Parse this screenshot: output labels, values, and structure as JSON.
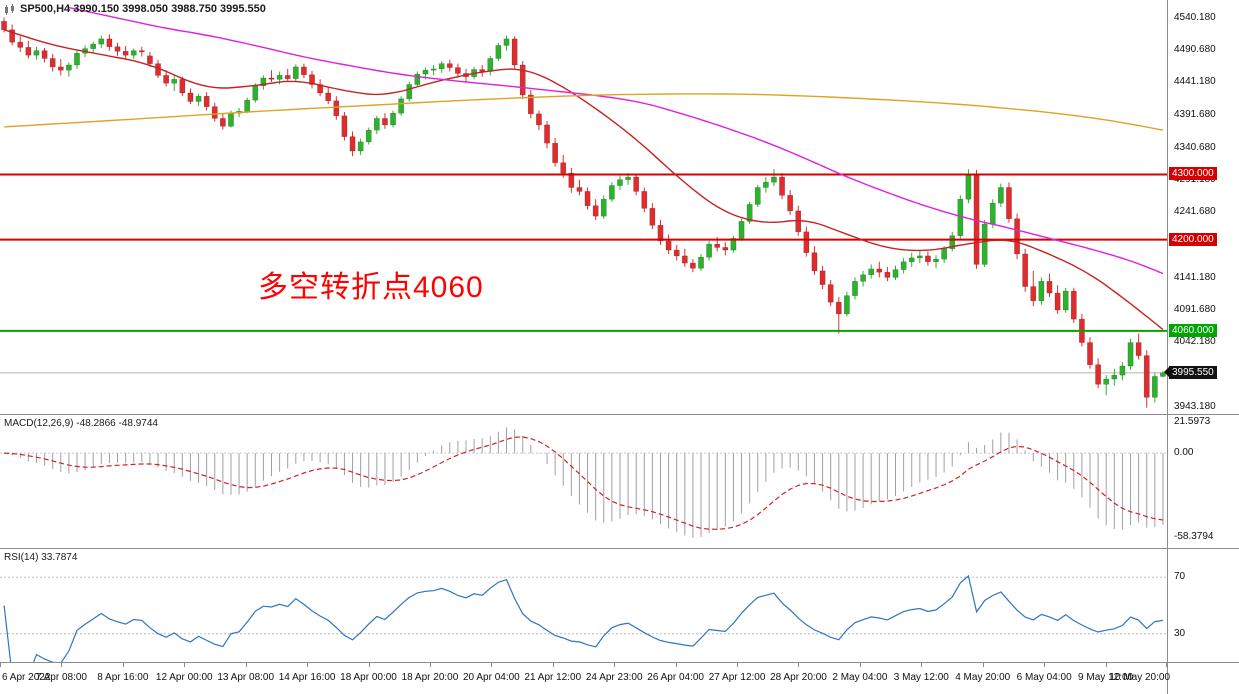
{
  "title": {
    "text": "SP500,H4  3990.150 3998.050 3988.750 3995.550"
  },
  "annotation": {
    "text": "多空转折点4060",
    "color": "#ff0000"
  },
  "colors": {
    "up": "#2bb32b",
    "down": "#e02c2c",
    "background": "#ffffff",
    "separator": "#8c8c8c",
    "axis_text": "#111111",
    "current_price_line": "#999999",
    "current_price_box": "#111111"
  },
  "chart_data": {
    "type": "candlestick",
    "symbol": "SP500",
    "timeframe": "H4",
    "ohlc_display": {
      "open": "3990.150",
      "high": "3998.050",
      "low": "3988.750",
      "close": "3995.550"
    },
    "price_range": [
      3932.4,
      4567.7
    ],
    "price_ticks": [
      {
        "v": 4540.18,
        "label": "4540.180"
      },
      {
        "v": 4490.68,
        "label": "4490.680"
      },
      {
        "v": 4441.18,
        "label": "4441.180"
      },
      {
        "v": 4391.68,
        "label": "4391.680"
      },
      {
        "v": 4340.68,
        "label": "4340.680"
      },
      {
        "v": 4291.18,
        "label": "4291.180"
      },
      {
        "v": 4241.68,
        "label": "4241.680"
      },
      {
        "v": 4141.18,
        "label": "4141.180"
      },
      {
        "v": 4091.68,
        "label": "4091.680"
      },
      {
        "v": 4042.18,
        "label": "4042.180"
      },
      {
        "v": 3943.18,
        "label": "3943.180"
      }
    ],
    "hlines": [
      {
        "price": 4300,
        "label": "4300.000",
        "color": "#d40000",
        "width": 2
      },
      {
        "price": 4200,
        "label": "4200.000",
        "color": "#d40000",
        "width": 2
      },
      {
        "price": 4060,
        "label": "4060.000",
        "color": "#00a503",
        "width": 2
      }
    ],
    "current_price": {
      "price": 3995.55,
      "label": "3995.550"
    },
    "time_labels": [
      "6 Apr 2022",
      "7 Apr 08:00",
      "8 Apr 16:00",
      "12 Apr 00:00",
      "13 Apr 08:00",
      "14 Apr 16:00",
      "18 Apr 00:00",
      "18 Apr 20:00",
      "20 Apr 04:00",
      "21 Apr 12:00",
      "24 Apr 23:00",
      "26 Apr 04:00",
      "27 Apr 12:00",
      "28 Apr 20:00",
      "2 May 04:00",
      "3 May 12:00",
      "4 May 20:00",
      "6 May 04:00",
      "9 May 12:00",
      "10 May 20:00"
    ],
    "candles": [
      [
        4535,
        4541,
        4518,
        4522
      ],
      [
        4522,
        4530,
        4498,
        4503
      ],
      [
        4503,
        4512,
        4488,
        4495
      ],
      [
        4495,
        4505,
        4478,
        4483
      ],
      [
        4483,
        4496,
        4476,
        4490
      ],
      [
        4490,
        4494,
        4472,
        4478
      ],
      [
        4478,
        4485,
        4458,
        4465
      ],
      [
        4465,
        4477,
        4452,
        4460
      ],
      [
        4460,
        4472,
        4450,
        4468
      ],
      [
        4468,
        4490,
        4462,
        4486
      ],
      [
        4486,
        4498,
        4480,
        4493
      ],
      [
        4493,
        4504,
        4486,
        4500
      ],
      [
        4500,
        4513,
        4494,
        4508
      ],
      [
        4508,
        4515,
        4490,
        4496
      ],
      [
        4496,
        4502,
        4482,
        4489
      ],
      [
        4489,
        4497,
        4478,
        4483
      ],
      [
        4483,
        4493,
        4477,
        4490
      ],
      [
        4490,
        4496,
        4481,
        4488
      ],
      [
        4482,
        4488,
        4465,
        4470
      ],
      [
        4470,
        4476,
        4448,
        4452
      ],
      [
        4452,
        4460,
        4435,
        4440
      ],
      [
        4440,
        4452,
        4428,
        4446
      ],
      [
        4446,
        4450,
        4420,
        4425
      ],
      [
        4425,
        4432,
        4408,
        4412
      ],
      [
        4412,
        4424,
        4405,
        4420
      ],
      [
        4420,
        4426,
        4398,
        4404
      ],
      [
        4404,
        4410,
        4381,
        4386
      ],
      [
        4386,
        4394,
        4369,
        4374
      ],
      [
        4374,
        4398,
        4372,
        4394
      ],
      [
        4394,
        4402,
        4388,
        4397
      ],
      [
        4397,
        4418,
        4394,
        4414
      ],
      [
        4414,
        4440,
        4410,
        4436
      ],
      [
        4436,
        4452,
        4430,
        4448
      ],
      [
        4448,
        4460,
        4442,
        4446
      ],
      [
        4446,
        4458,
        4438,
        4452
      ],
      [
        4452,
        4462,
        4444,
        4447
      ],
      [
        4447,
        4469,
        4443,
        4465
      ],
      [
        4465,
        4470,
        4448,
        4453
      ],
      [
        4453,
        4459,
        4432,
        4438
      ],
      [
        4438,
        4446,
        4420,
        4425
      ],
      [
        4425,
        4434,
        4408,
        4413
      ],
      [
        4413,
        4420,
        4384,
        4390
      ],
      [
        4390,
        4396,
        4352,
        4358
      ],
      [
        4358,
        4366,
        4328,
        4336
      ],
      [
        4336,
        4355,
        4330,
        4350
      ],
      [
        4350,
        4372,
        4346,
        4368
      ],
      [
        4368,
        4390,
        4362,
        4386
      ],
      [
        4386,
        4394,
        4370,
        4376
      ],
      [
        4376,
        4398,
        4372,
        4394
      ],
      [
        4394,
        4420,
        4390,
        4416
      ],
      [
        4416,
        4442,
        4412,
        4438
      ],
      [
        4438,
        4458,
        4434,
        4454
      ],
      [
        4454,
        4464,
        4446,
        4460
      ],
      [
        4460,
        4468,
        4452,
        4462
      ],
      [
        4462,
        4474,
        4456,
        4470
      ],
      [
        4470,
        4476,
        4458,
        4464
      ],
      [
        4464,
        4470,
        4448,
        4455
      ],
      [
        4455,
        4462,
        4442,
        4450
      ],
      [
        4450,
        4465,
        4446,
        4461
      ],
      [
        4461,
        4468,
        4450,
        4458
      ],
      [
        4458,
        4482,
        4452,
        4478
      ],
      [
        4478,
        4502,
        4474,
        4498
      ],
      [
        4498,
        4513,
        4490,
        4508
      ],
      [
        4508,
        4512,
        4462,
        4468
      ],
      [
        4468,
        4474,
        4416,
        4422
      ],
      [
        4422,
        4430,
        4386,
        4393
      ],
      [
        4393,
        4398,
        4368,
        4376
      ],
      [
        4376,
        4382,
        4340,
        4348
      ],
      [
        4348,
        4356,
        4312,
        4318
      ],
      [
        4318,
        4330,
        4295,
        4302
      ],
      [
        4302,
        4310,
        4272,
        4280
      ],
      [
        4280,
        4292,
        4268,
        4274
      ],
      [
        4274,
        4280,
        4246,
        4252
      ],
      [
        4252,
        4262,
        4230,
        4236
      ],
      [
        4236,
        4268,
        4232,
        4262
      ],
      [
        4262,
        4288,
        4258,
        4283
      ],
      [
        4283,
        4298,
        4276,
        4292
      ],
      [
        4292,
        4302,
        4284,
        4296
      ],
      [
        4296,
        4300,
        4268,
        4274
      ],
      [
        4274,
        4280,
        4242,
        4248
      ],
      [
        4248,
        4256,
        4216,
        4222
      ],
      [
        4222,
        4230,
        4192,
        4198
      ],
      [
        4198,
        4208,
        4178,
        4184
      ],
      [
        4184,
        4192,
        4168,
        4175
      ],
      [
        4175,
        4186,
        4158,
        4164
      ],
      [
        4164,
        4170,
        4150,
        4156
      ],
      [
        4156,
        4178,
        4152,
        4173
      ],
      [
        4173,
        4198,
        4168,
        4193
      ],
      [
        4193,
        4204,
        4182,
        4188
      ],
      [
        4188,
        4196,
        4176,
        4184
      ],
      [
        4184,
        4206,
        4180,
        4202
      ],
      [
        4202,
        4232,
        4198,
        4228
      ],
      [
        4228,
        4258,
        4224,
        4254
      ],
      [
        4254,
        4284,
        4250,
        4280
      ],
      [
        4280,
        4296,
        4272,
        4288
      ],
      [
        4288,
        4308,
        4282,
        4296
      ],
      [
        4296,
        4302,
        4262,
        4268
      ],
      [
        4268,
        4276,
        4238,
        4244
      ],
      [
        4244,
        4252,
        4206,
        4212
      ],
      [
        4212,
        4220,
        4174,
        4180
      ],
      [
        4180,
        4190,
        4146,
        4152
      ],
      [
        4152,
        4160,
        4124,
        4131
      ],
      [
        4131,
        4138,
        4098,
        4104
      ],
      [
        4104,
        4112,
        4056,
        4086
      ],
      [
        4086,
        4120,
        4082,
        4114
      ],
      [
        4114,
        4142,
        4108,
        4136
      ],
      [
        4136,
        4152,
        4128,
        4146
      ],
      [
        4146,
        4162,
        4140,
        4155
      ],
      [
        4155,
        4166,
        4142,
        4150
      ],
      [
        4150,
        4158,
        4136,
        4142
      ],
      [
        4142,
        4160,
        4138,
        4154
      ],
      [
        4154,
        4172,
        4148,
        4166
      ],
      [
        4166,
        4180,
        4158,
        4172
      ],
      [
        4172,
        4184,
        4164,
        4175
      ],
      [
        4175,
        4182,
        4160,
        4166
      ],
      [
        4166,
        4176,
        4156,
        4170
      ],
      [
        4170,
        4190,
        4164,
        4186
      ],
      [
        4186,
        4212,
        4182,
        4206
      ],
      [
        4206,
        4268,
        4200,
        4262
      ],
      [
        4262,
        4308,
        4256,
        4300
      ],
      [
        4300,
        4307,
        4155,
        4162
      ],
      [
        4162,
        4230,
        4158,
        4224
      ],
      [
        4224,
        4262,
        4218,
        4256
      ],
      [
        4256,
        4286,
        4250,
        4280
      ],
      [
        4280,
        4288,
        4226,
        4232
      ],
      [
        4232,
        4240,
        4170,
        4178
      ],
      [
        4178,
        4186,
        4120,
        4128
      ],
      [
        4128,
        4152,
        4098,
        4106
      ],
      [
        4106,
        4142,
        4100,
        4136
      ],
      [
        4136,
        4148,
        4112,
        4118
      ],
      [
        4118,
        4130,
        4086,
        4092
      ],
      [
        4092,
        4126,
        4088,
        4121
      ],
      [
        4121,
        4126,
        4072,
        4078
      ],
      [
        4078,
        4086,
        4036,
        4042
      ],
      [
        4042,
        4050,
        4002,
        4008
      ],
      [
        4008,
        4018,
        3972,
        3978
      ],
      [
        3978,
        3992,
        3961,
        3986
      ],
      [
        3986,
        4002,
        3976,
        3992
      ],
      [
        3992,
        4012,
        3984,
        4006
      ],
      [
        4006,
        4048,
        4000,
        4042
      ],
      [
        4042,
        4056,
        4016,
        4022
      ],
      [
        4022,
        4030,
        3942,
        3958
      ],
      [
        3958,
        3996,
        3950,
        3990
      ],
      [
        3990.15,
        3998.05,
        3988.75,
        3995.55
      ]
    ],
    "moving_averages": [
      {
        "name": "ma-fast-red",
        "color": "#c62222",
        "points": [
          [
            0,
            4522
          ],
          [
            6,
            4498
          ],
          [
            12,
            4484
          ],
          [
            18,
            4470
          ],
          [
            25,
            4430
          ],
          [
            31,
            4436
          ],
          [
            36,
            4446
          ],
          [
            42,
            4428
          ],
          [
            47,
            4420
          ],
          [
            53,
            4442
          ],
          [
            59,
            4458
          ],
          [
            64,
            4464
          ],
          [
            69,
            4436
          ],
          [
            77,
            4366
          ],
          [
            84,
            4286
          ],
          [
            89,
            4240
          ],
          [
            94,
            4224
          ],
          [
            99,
            4232
          ],
          [
            104,
            4208
          ],
          [
            109,
            4186
          ],
          [
            114,
            4182
          ],
          [
            119,
            4194
          ],
          [
            124,
            4202
          ],
          [
            129,
            4178
          ],
          [
            134,
            4148
          ],
          [
            139,
            4102
          ],
          [
            143,
            4062
          ]
        ]
      },
      {
        "name": "ma-medium-magenta",
        "color": "#dd22dd",
        "points": [
          [
            8,
            4556
          ],
          [
            14,
            4540
          ],
          [
            20,
            4524
          ],
          [
            25,
            4514
          ],
          [
            31,
            4498
          ],
          [
            37,
            4480
          ],
          [
            43,
            4466
          ],
          [
            49,
            4453
          ],
          [
            56,
            4443
          ],
          [
            62,
            4436
          ],
          [
            68,
            4428
          ],
          [
            74,
            4420
          ],
          [
            79,
            4410
          ],
          [
            84,
            4392
          ],
          [
            89,
            4372
          ],
          [
            94,
            4350
          ],
          [
            99,
            4324
          ],
          [
            104,
            4296
          ],
          [
            109,
            4272
          ],
          [
            114,
            4250
          ],
          [
            119,
            4232
          ],
          [
            124,
            4218
          ],
          [
            129,
            4202
          ],
          [
            134,
            4186
          ],
          [
            139,
            4168
          ],
          [
            143,
            4148
          ]
        ]
      },
      {
        "name": "ma-slow-orange",
        "color": "#dfa321",
        "points": [
          [
            0,
            4373
          ],
          [
            15,
            4384
          ],
          [
            30,
            4396
          ],
          [
            45,
            4406
          ],
          [
            60,
            4416
          ],
          [
            75,
            4423
          ],
          [
            90,
            4424
          ],
          [
            100,
            4420
          ],
          [
            110,
            4414
          ],
          [
            120,
            4406
          ],
          [
            130,
            4394
          ],
          [
            137,
            4382
          ],
          [
            143,
            4368
          ]
        ]
      }
    ],
    "macd": {
      "label": "MACD(12,26,9) -48.2866 -48.9744",
      "fast": 12,
      "slow": 26,
      "signal": 9,
      "value": -48.2866,
      "signal_value": -48.9744,
      "ticks": [
        {
          "v": 21.5973,
          "label": "21.5973"
        },
        {
          "v": 0,
          "label": "0.00"
        },
        {
          "v": -58.3794,
          "label": "-58.3794"
        }
      ],
      "hist_color": "#a0a0a0",
      "signal_color": "#d22222"
    },
    "rsi": {
      "label": "RSI(14) 33.7874",
      "period": 14,
      "value": 33.7874,
      "range": [
        10,
        90
      ],
      "levels": [
        70,
        30
      ],
      "ticks": [
        {
          "v": 70,
          "label": "70"
        },
        {
          "v": 30,
          "label": "30"
        }
      ],
      "line_color": "#2e75c3",
      "level_color": "#bdbdbd"
    }
  }
}
